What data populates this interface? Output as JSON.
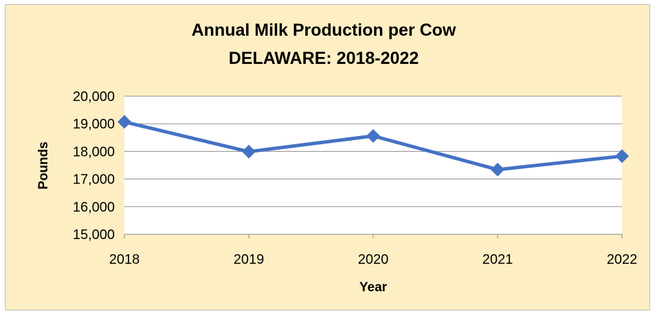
{
  "chart_data": {
    "type": "line",
    "title": "Annual Milk Production per Cow",
    "subtitle": "DELAWARE: 2018-2022",
    "xlabel": "Year",
    "ylabel": "Pounds",
    "categories": [
      "2018",
      "2019",
      "2020",
      "2021",
      "2022"
    ],
    "series": [
      {
        "values": [
          19070,
          17990,
          18560,
          17340,
          17830
        ]
      }
    ],
    "ylim": [
      15000,
      20000
    ],
    "yticks": [
      15000,
      16000,
      17000,
      18000,
      19000,
      20000
    ],
    "ytick_labels": [
      "15,000",
      "16,000",
      "17,000",
      "18,000",
      "19,000",
      "20,000"
    ],
    "grid": true,
    "legend": "none",
    "colors": {
      "line": "#4472c4",
      "background": "#fdeec4",
      "plot_background": "#ffffff",
      "grid": "#8c8c8c"
    }
  }
}
